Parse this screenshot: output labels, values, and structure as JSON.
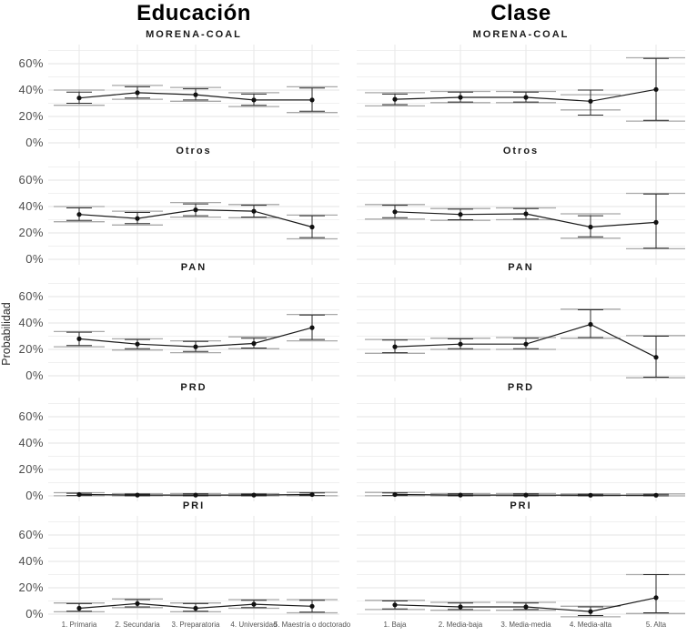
{
  "page": {
    "background": "#ffffff"
  },
  "colors": {
    "grid_major": "#e3e3e3",
    "grid_minor": "#f0f0f0",
    "grid_vertical": "#e7e7e7",
    "interval_wide_gray": "#a9a9a9",
    "interval_narrow_black": "#2b2b2b",
    "series_line": "#1a1a1a",
    "point_fill": "#111111",
    "axis_text": "#4d4d4d",
    "title_text": "#000000"
  },
  "chart_data": {
    "type": "line",
    "unit": "%",
    "grid": "on",
    "legend": "none",
    "y_axis": {
      "label": "Probabilidad",
      "ticks": [
        0,
        20,
        40,
        60
      ],
      "tick_labels": [
        "0%",
        "20%",
        "40%",
        "60%"
      ],
      "minor_ticks": [
        10,
        30,
        50,
        70
      ],
      "range": [
        -4,
        74
      ]
    },
    "facet_rows": [
      "MORENA-COAL",
      "Otros",
      "PAN",
      "PRD",
      "PRI"
    ],
    "facet_cols": [
      {
        "title": "Educación",
        "categories": [
          "1. Primaria",
          "2. Secundaria",
          "3. Preparatoria",
          "4. Universidad",
          "5. Maestría o doctorado"
        ]
      },
      {
        "title": "Clase",
        "categories": [
          "1. Baja",
          "2. Media-baja",
          "3. Media-media",
          "4. Media-alta",
          "5. Alta"
        ]
      }
    ],
    "panels": [
      {
        "col": 0,
        "row": 0,
        "facet": "MORENA-COAL",
        "values": [
          34,
          38,
          36.5,
          32.5,
          32.5
        ],
        "ci_narrow": [
          [
            30,
            38.5
          ],
          [
            34,
            42.5
          ],
          [
            32.5,
            41
          ],
          [
            28.5,
            37
          ],
          [
            24,
            41.5
          ]
        ],
        "ci_wide": [
          [
            28.5,
            40
          ],
          [
            33,
            43.5
          ],
          [
            31.5,
            42
          ],
          [
            27.5,
            38
          ],
          [
            23,
            42.5
          ]
        ]
      },
      {
        "col": 0,
        "row": 1,
        "facet": "Otros",
        "values": [
          34,
          31,
          37.5,
          36.5,
          24.5
        ],
        "ci_narrow": [
          [
            29.5,
            39
          ],
          [
            27,
            35.5
          ],
          [
            33,
            42
          ],
          [
            32,
            41
          ],
          [
            16.5,
            33
          ]
        ],
        "ci_wide": [
          [
            28.5,
            40
          ],
          [
            26,
            36.5
          ],
          [
            32,
            43
          ],
          [
            31.5,
            41.5
          ],
          [
            15.5,
            33.5
          ]
        ]
      },
      {
        "col": 0,
        "row": 2,
        "facet": "PAN",
        "values": [
          28,
          24,
          22,
          24.5,
          36.5
        ],
        "ci_narrow": [
          [
            23,
            33
          ],
          [
            20.5,
            27.5
          ],
          [
            18.5,
            26
          ],
          [
            21,
            28.5
          ],
          [
            27.5,
            46
          ]
        ],
        "ci_wide": [
          [
            22,
            33.5
          ],
          [
            19.5,
            28
          ],
          [
            17.5,
            26.5
          ],
          [
            20.5,
            29.5
          ],
          [
            26.5,
            46.5
          ]
        ]
      },
      {
        "col": 0,
        "row": 3,
        "facet": "PRD",
        "values": [
          1,
          0.6,
          0.6,
          0.6,
          1
        ],
        "ci_narrow": [
          [
            0.3,
            2
          ],
          [
            0.1,
            1.4
          ],
          [
            0.1,
            1.5
          ],
          [
            0.1,
            1.4
          ],
          [
            0.3,
            2.2
          ]
        ],
        "ci_wide": [
          [
            0.1,
            2.4
          ],
          [
            0,
            1.7
          ],
          [
            0,
            1.8
          ],
          [
            0,
            1.7
          ],
          [
            0.1,
            2.6
          ]
        ]
      },
      {
        "col": 0,
        "row": 4,
        "facet": "PRI",
        "values": [
          4.5,
          8,
          4.5,
          7.5,
          6
        ],
        "ci_narrow": [
          [
            2.2,
            8
          ],
          [
            5.5,
            11
          ],
          [
            2.2,
            8
          ],
          [
            5,
            10.5
          ],
          [
            1.5,
            10.5
          ]
        ],
        "ci_wide": [
          [
            1.8,
            8.5
          ],
          [
            5,
            11.5
          ],
          [
            1.8,
            8.5
          ],
          [
            4.5,
            11
          ],
          [
            1,
            11
          ]
        ]
      },
      {
        "col": 1,
        "row": 0,
        "facet": "MORENA-COAL",
        "values": [
          33,
          34.5,
          34.5,
          31.5,
          40.5
        ],
        "ci_narrow": [
          [
            29,
            37
          ],
          [
            31,
            38.5
          ],
          [
            31,
            38.5
          ],
          [
            21,
            40
          ],
          [
            17,
            64
          ]
        ],
        "ci_wide": [
          [
            28,
            38
          ],
          [
            30.5,
            39
          ],
          [
            30.5,
            39
          ],
          [
            25,
            36.5
          ],
          [
            16.5,
            64.5
          ]
        ]
      },
      {
        "col": 1,
        "row": 1,
        "facet": "Otros",
        "values": [
          36,
          34,
          34.5,
          24.5,
          28
        ],
        "ci_narrow": [
          [
            31.5,
            41
          ],
          [
            30,
            38
          ],
          [
            30.5,
            38.5
          ],
          [
            17,
            33
          ],
          [
            8.5,
            49.5
          ]
        ],
        "ci_wide": [
          [
            30.5,
            41.5
          ],
          [
            29.5,
            38.5
          ],
          [
            30,
            39
          ],
          [
            16,
            34.5
          ],
          [
            8,
            50
          ]
        ]
      },
      {
        "col": 1,
        "row": 2,
        "facet": "PAN",
        "values": [
          22,
          24,
          24,
          39,
          14
        ],
        "ci_narrow": [
          [
            17.5,
            27
          ],
          [
            20.5,
            28
          ],
          [
            20.5,
            28.5
          ],
          [
            29,
            50
          ],
          [
            -1,
            30
          ]
        ],
        "ci_wide": [
          [
            17,
            27.5
          ],
          [
            20,
            28.5
          ],
          [
            20,
            29
          ],
          [
            28.5,
            50.5
          ],
          [
            -1.5,
            30.5
          ]
        ]
      },
      {
        "col": 1,
        "row": 3,
        "facet": "PRD",
        "values": [
          1,
          0.6,
          0.6,
          0.5,
          0.5
        ],
        "ci_narrow": [
          [
            0.3,
            2.2
          ],
          [
            0.1,
            1.5
          ],
          [
            0.1,
            1.5
          ],
          [
            0.1,
            1.2
          ],
          [
            0.1,
            1.2
          ]
        ],
        "ci_wide": [
          [
            0.1,
            2.6
          ],
          [
            0,
            1.8
          ],
          [
            0,
            1.8
          ],
          [
            0,
            1.5
          ],
          [
            0,
            1.5
          ]
        ]
      },
      {
        "col": 1,
        "row": 4,
        "facet": "PRI",
        "values": [
          7,
          5.5,
          5.5,
          2,
          12.5
        ],
        "ci_narrow": [
          [
            4,
            10
          ],
          [
            3.5,
            8.5
          ],
          [
            3.5,
            8.5
          ],
          [
            -1,
            5.5
          ],
          [
            1,
            30
          ]
        ],
        "ci_wide": [
          [
            3.5,
            10.5
          ],
          [
            3,
            9
          ],
          [
            3,
            9
          ],
          [
            -2,
            6
          ],
          [
            0.5,
            30
          ]
        ]
      }
    ]
  }
}
